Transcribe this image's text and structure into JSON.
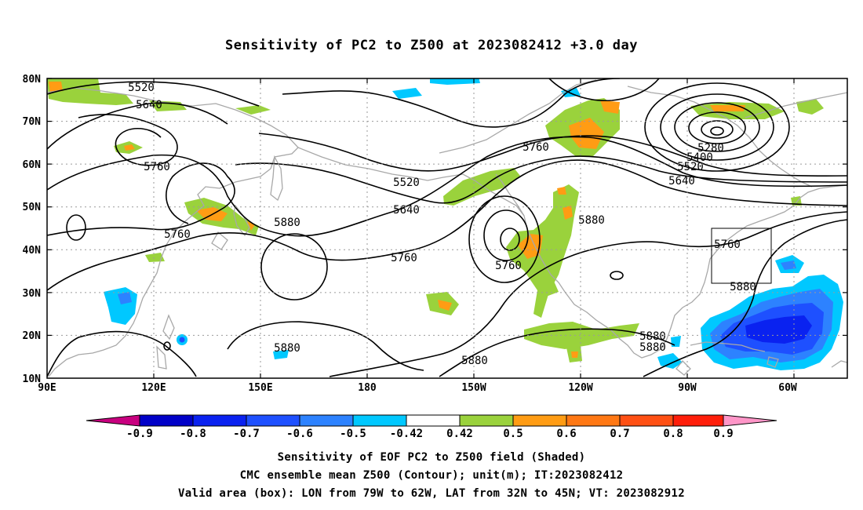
{
  "title": "Sensitivity of PC2 to Z500 at 2023082412 +3.0 day",
  "map": {
    "lat_labels": [
      "80N",
      "70N",
      "60N",
      "50N",
      "40N",
      "30N",
      "20N",
      "10N"
    ],
    "lon_labels": [
      "90E",
      "120E",
      "150E",
      "180",
      "150W",
      "120W",
      "90W",
      "60W"
    ],
    "contour_labels": {
      "c5520a": "5520",
      "c5640a": "5640",
      "c5760a": "5760",
      "c5760b": "5760",
      "c5880a": "5880",
      "c5880b": "5880",
      "c5520b": "5520",
      "c5640b": "5640",
      "c5760c": "5760",
      "c5760d": "5760",
      "c5760e": "5760",
      "c5880c": "5880",
      "c5880d": "5880",
      "c5280": "5280",
      "c5400": "5400",
      "c5520c": "5520",
      "c5640c": "5640",
      "c5760f": "5760",
      "c5880e": "5880",
      "c5880f": "5880",
      "c5880g": "5880"
    },
    "colors": {
      "neg09": "#c8007f",
      "neg08": "#0000c8",
      "neg07": "#0a22f0",
      "neg06": "#1e50ff",
      "neg05": "#2d82ff",
      "neg042": "#00c8ff",
      "white": "#ffffff",
      "pos042": "#9ad23c",
      "pos05": "#ff9c14",
      "pos06": "#ff7814",
      "pos07": "#ff5014",
      "pos08": "#ff1e0a",
      "pos09": "#ff96c8"
    }
  },
  "colorbar": {
    "labels": [
      "-0.9",
      "-0.8",
      "-0.7",
      "-0.6",
      "-0.5",
      "-0.42",
      "0.42",
      "0.5",
      "0.6",
      "0.7",
      "0.8",
      "0.9"
    ]
  },
  "caption": {
    "line1": "Sensitivity of EOF PC2 to Z500 field (Shaded)",
    "line2": "CMC ensemble mean Z500 (Contour); unit(m); IT:2023082412",
    "line3": "Valid area (box): LON from 79W to 62W, LAT from 32N to 45N; VT: 2023082912"
  }
}
